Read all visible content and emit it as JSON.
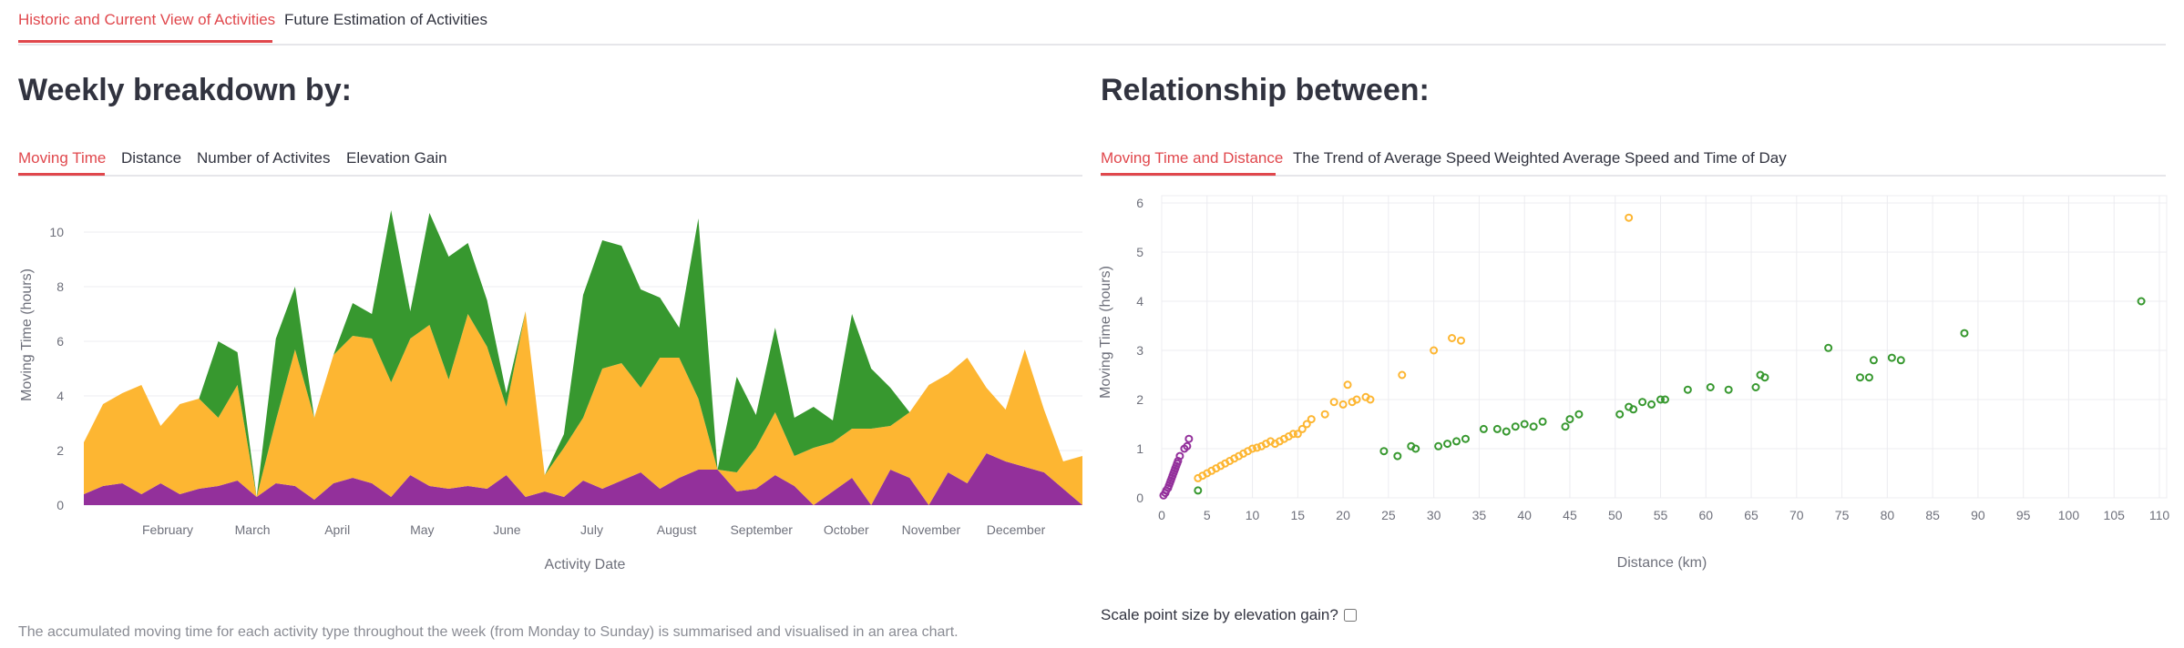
{
  "main_tabs": [
    {
      "label": "Historic and Current View of Activities",
      "active": true
    },
    {
      "label": "Future Estimation of Activities",
      "active": false
    }
  ],
  "left_panel": {
    "title": "Weekly breakdown by:",
    "tabs": [
      {
        "label": "Moving Time",
        "active": true
      },
      {
        "label": "Distance",
        "active": false
      },
      {
        "label": "Number of Activites",
        "active": false
      },
      {
        "label": "Elevation Gain",
        "active": false
      }
    ],
    "caption": "The accumulated moving time for each activity type throughout the week (from Monday to Sunday) is summarised and visualised in an area chart."
  },
  "right_panel": {
    "title": "Relationship between:",
    "tabs": [
      {
        "label": "Moving Time and Distance",
        "active": true
      },
      {
        "label": "The Trend of Average Speed",
        "active": false
      },
      {
        "label": "Weighted Average Speed and Time of Day",
        "active": false
      }
    ],
    "checkbox_label": "Scale point size by elevation gain?",
    "checkbox_checked": false
  },
  "colors": {
    "accent": "#e0474c",
    "series_purple": "#93309b",
    "series_orange": "#fdb632",
    "series_green": "#37982f"
  },
  "chart_data": [
    {
      "type": "area",
      "stacked": true,
      "xlabel": "Activity Date",
      "ylabel": "Moving Time (hours)",
      "ylim": [
        0,
        11.5
      ],
      "yticks": [
        0,
        2,
        4,
        6,
        8,
        10
      ],
      "xtick_labels": [
        "February",
        "March",
        "April",
        "May",
        "June",
        "July",
        "August",
        "September",
        "October",
        "November",
        "December"
      ],
      "grid": true,
      "series": [
        {
          "color": "#93309b",
          "values": [
            0.4,
            0.7,
            0.8,
            0.4,
            0.8,
            0.4,
            0.6,
            0.7,
            0.9,
            0.3,
            0.8,
            0.7,
            0.2,
            0.8,
            1.0,
            0.8,
            0.3,
            1.1,
            0.7,
            0.6,
            0.7,
            0.6,
            1.1,
            0.3,
            0.5,
            0.3,
            0.9,
            0.6,
            0.9,
            1.2,
            0.6,
            1.0,
            1.3,
            1.3,
            0.5,
            0.6,
            1.1,
            0.7,
            0.0,
            0.5,
            1.0,
            0.0,
            1.3,
            1.0,
            0.0,
            1.2,
            0.8,
            1.9,
            1.6,
            1.4,
            1.2,
            0.6,
            0.0
          ]
        },
        {
          "color": "#fdb632",
          "values": [
            1.9,
            3.0,
            3.3,
            4.0,
            2.1,
            3.3,
            3.3,
            2.5,
            3.5,
            0.0,
            2.3,
            5.0,
            3.0,
            4.7,
            5.2,
            5.3,
            4.2,
            5.0,
            5.9,
            4.0,
            6.3,
            5.2,
            2.5,
            6.8,
            0.6,
            1.8,
            2.3,
            4.4,
            4.3,
            3.1,
            4.8,
            4.4,
            2.6,
            0.0,
            0.7,
            1.5,
            2.3,
            1.1,
            2.1,
            1.8,
            1.8,
            2.8,
            1.6,
            2.4,
            4.4,
            3.6,
            4.6,
            2.4,
            1.9,
            4.3,
            2.3,
            1.0,
            1.8
          ]
        },
        {
          "color": "#37982f",
          "values": [
            0.0,
            0.0,
            0.0,
            0.0,
            0.0,
            0.0,
            0.0,
            2.8,
            1.2,
            0.0,
            3.0,
            2.3,
            0.0,
            0.0,
            1.2,
            0.9,
            6.3,
            1.0,
            4.1,
            4.5,
            2.6,
            1.7,
            0.5,
            0.0,
            0.0,
            0.5,
            4.5,
            4.7,
            4.3,
            3.6,
            2.2,
            1.1,
            6.6,
            0.0,
            3.5,
            1.2,
            3.1,
            1.4,
            1.5,
            0.8,
            4.2,
            2.2,
            1.4,
            0.0,
            0.0,
            0.0,
            0.0,
            0.0,
            0.0,
            0.0,
            0.0,
            0.0,
            0.0
          ]
        }
      ]
    },
    {
      "type": "scatter",
      "xlabel": "Distance (km)",
      "ylabel": "Moving Time (hours)",
      "xlim": [
        0,
        110
      ],
      "ylim": [
        0,
        6
      ],
      "xticks": [
        0,
        5,
        10,
        15,
        20,
        25,
        30,
        35,
        40,
        45,
        50,
        55,
        60,
        65,
        70,
        75,
        80,
        85,
        90,
        95,
        100,
        105,
        110
      ],
      "yticks": [
        0,
        1,
        2,
        3,
        4,
        5,
        6
      ],
      "grid": true,
      "series": [
        {
          "color": "#93309b",
          "points": [
            [
              0.2,
              0.05
            ],
            [
              0.4,
              0.1
            ],
            [
              0.5,
              0.15
            ],
            [
              0.7,
              0.2
            ],
            [
              0.8,
              0.25
            ],
            [
              0.9,
              0.3
            ],
            [
              1.0,
              0.35
            ],
            [
              1.1,
              0.4
            ],
            [
              1.2,
              0.45
            ],
            [
              1.3,
              0.5
            ],
            [
              1.4,
              0.55
            ],
            [
              1.5,
              0.6
            ],
            [
              1.6,
              0.65
            ],
            [
              1.7,
              0.7
            ],
            [
              1.8,
              0.75
            ],
            [
              2.0,
              0.85
            ],
            [
              2.5,
              1.0
            ],
            [
              2.8,
              1.05
            ],
            [
              3.0,
              1.2
            ]
          ]
        },
        {
          "color": "#fdb632",
          "points": [
            [
              4.0,
              0.4
            ],
            [
              4.5,
              0.45
            ],
            [
              5.0,
              0.5
            ],
            [
              5.5,
              0.55
            ],
            [
              6.0,
              0.6
            ],
            [
              6.5,
              0.65
            ],
            [
              7.0,
              0.7
            ],
            [
              7.5,
              0.75
            ],
            [
              8.0,
              0.8
            ],
            [
              8.5,
              0.85
            ],
            [
              9.0,
              0.9
            ],
            [
              9.5,
              0.95
            ],
            [
              10.0,
              1.0
            ],
            [
              10.5,
              1.02
            ],
            [
              11.0,
              1.05
            ],
            [
              11.5,
              1.1
            ],
            [
              12.0,
              1.15
            ],
            [
              12.5,
              1.1
            ],
            [
              13.0,
              1.15
            ],
            [
              13.5,
              1.2
            ],
            [
              14.0,
              1.25
            ],
            [
              14.5,
              1.3
            ],
            [
              15.0,
              1.3
            ],
            [
              15.5,
              1.4
            ],
            [
              16.0,
              1.5
            ],
            [
              16.5,
              1.6
            ],
            [
              18.0,
              1.7
            ],
            [
              19.0,
              1.95
            ],
            [
              20.0,
              1.9
            ],
            [
              21.0,
              1.95
            ],
            [
              21.5,
              2.0
            ],
            [
              22.5,
              2.05
            ],
            [
              23.0,
              2.0
            ],
            [
              20.5,
              2.3
            ],
            [
              26.5,
              2.5
            ],
            [
              30.0,
              3.0
            ],
            [
              32.0,
              3.25
            ],
            [
              33.0,
              3.2
            ],
            [
              51.5,
              5.7
            ]
          ]
        },
        {
          "color": "#37982f",
          "points": [
            [
              4.0,
              0.15
            ],
            [
              24.5,
              0.95
            ],
            [
              26.0,
              0.85
            ],
            [
              27.5,
              1.05
            ],
            [
              28.0,
              1.0
            ],
            [
              30.5,
              1.05
            ],
            [
              31.5,
              1.1
            ],
            [
              32.5,
              1.15
            ],
            [
              33.5,
              1.2
            ],
            [
              35.5,
              1.4
            ],
            [
              37.0,
              1.4
            ],
            [
              38.0,
              1.35
            ],
            [
              39.0,
              1.45
            ],
            [
              40.0,
              1.5
            ],
            [
              41.0,
              1.45
            ],
            [
              42.0,
              1.55
            ],
            [
              44.5,
              1.45
            ],
            [
              45.0,
              1.6
            ],
            [
              46.0,
              1.7
            ],
            [
              50.5,
              1.7
            ],
            [
              51.5,
              1.85
            ],
            [
              52.0,
              1.8
            ],
            [
              53.0,
              1.95
            ],
            [
              54.0,
              1.9
            ],
            [
              55.0,
              2.0
            ],
            [
              55.5,
              2.0
            ],
            [
              58.0,
              2.2
            ],
            [
              60.5,
              2.25
            ],
            [
              62.5,
              2.2
            ],
            [
              65.5,
              2.25
            ],
            [
              66.0,
              2.5
            ],
            [
              66.5,
              2.45
            ],
            [
              73.5,
              3.05
            ],
            [
              77.0,
              2.45
            ],
            [
              78.0,
              2.45
            ],
            [
              78.5,
              2.8
            ],
            [
              80.5,
              2.85
            ],
            [
              81.5,
              2.8
            ],
            [
              88.5,
              3.35
            ],
            [
              108.0,
              4.0
            ]
          ]
        }
      ]
    }
  ]
}
